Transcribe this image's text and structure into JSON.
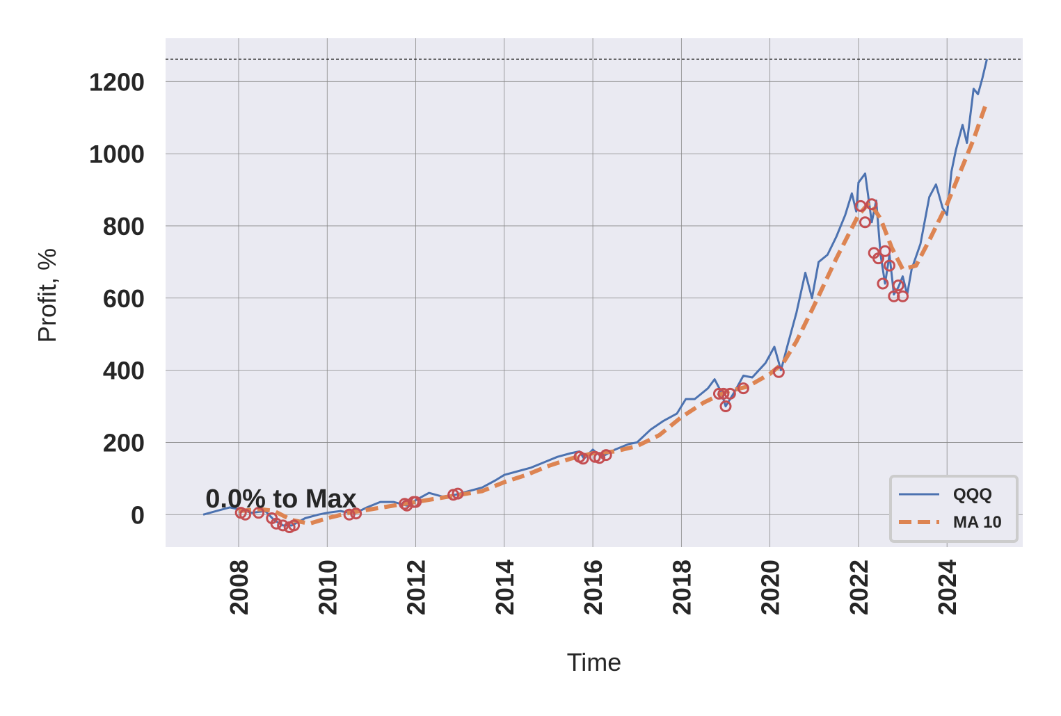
{
  "chart_data": {
    "type": "line",
    "title_x": "Time",
    "ylabel": "Profit, %",
    "annotation": {
      "text": "0.0% to Max",
      "x": 2007.25,
      "y": 20
    },
    "max_line": {
      "value": 1262,
      "color": "#000000"
    },
    "xlim": [
      2006.35,
      2025.71
    ],
    "ylim": [
      -90,
      1320
    ],
    "xticks": [
      2008,
      2010,
      2012,
      2014,
      2016,
      2018,
      2020,
      2022,
      2024
    ],
    "yticks": [
      0,
      200,
      400,
      600,
      800,
      1000,
      1200
    ],
    "grid": true,
    "legend": "lower right",
    "series": [
      {
        "name": "QQQ",
        "color": "#4c72b0",
        "style": "solid",
        "x": [
          2007.2,
          2007.5,
          2007.8,
          2008.0,
          2008.3,
          2008.6,
          2008.8,
          2009.0,
          2009.2,
          2009.5,
          2009.8,
          2010.0,
          2010.3,
          2010.6,
          2010.9,
          2011.2,
          2011.5,
          2011.8,
          2012.0,
          2012.3,
          2012.6,
          2012.9,
          2013.2,
          2013.5,
          2013.8,
          2014.0,
          2014.3,
          2014.6,
          2014.9,
          2015.2,
          2015.5,
          2015.7,
          2015.8,
          2016.0,
          2016.2,
          2016.5,
          2016.8,
          2017.0,
          2017.3,
          2017.6,
          2017.9,
          2018.1,
          2018.3,
          2018.6,
          2018.75,
          2018.9,
          2019.0,
          2019.2,
          2019.4,
          2019.6,
          2019.9,
          2020.1,
          2020.25,
          2020.4,
          2020.6,
          2020.8,
          2020.95,
          2021.1,
          2021.3,
          2021.5,
          2021.7,
          2021.85,
          2021.95,
          2022.0,
          2022.15,
          2022.3,
          2022.4,
          2022.5,
          2022.6,
          2022.7,
          2022.8,
          2022.9,
          2023.0,
          2023.1,
          2023.2,
          2023.4,
          2023.6,
          2023.75,
          2023.9,
          2024.0,
          2024.1,
          2024.2,
          2024.35,
          2024.45,
          2024.6,
          2024.7,
          2024.8,
          2024.9
        ],
        "values": [
          0,
          10,
          20,
          15,
          5,
          10,
          -15,
          -30,
          -30,
          -10,
          0,
          5,
          10,
          2,
          20,
          35,
          35,
          25,
          40,
          60,
          50,
          55,
          65,
          75,
          95,
          110,
          120,
          130,
          145,
          160,
          170,
          175,
          155,
          180,
          160,
          180,
          195,
          200,
          235,
          260,
          280,
          320,
          320,
          350,
          375,
          340,
          300,
          340,
          385,
          380,
          420,
          465,
          400,
          470,
          560,
          670,
          600,
          700,
          720,
          770,
          830,
          890,
          840,
          920,
          945,
          810,
          870,
          720,
          640,
          720,
          610,
          630,
          660,
          610,
          680,
          750,
          880,
          915,
          850,
          830,
          950,
          1010,
          1080,
          1030,
          1180,
          1165,
          1210,
          1262
        ]
      },
      {
        "name": "MA 10",
        "color": "#dd8452",
        "style": "dashed",
        "x": [
          2008.0,
          2008.5,
          2008.8,
          2009.2,
          2009.6,
          2010.0,
          2010.5,
          2011.0,
          2011.5,
          2012.0,
          2012.5,
          2013.0,
          2013.5,
          2014.0,
          2014.5,
          2015.0,
          2015.5,
          2016.0,
          2016.5,
          2017.0,
          2017.5,
          2018.0,
          2018.5,
          2019.0,
          2019.5,
          2020.0,
          2020.3,
          2020.6,
          2021.0,
          2021.5,
          2022.0,
          2022.25,
          2022.5,
          2022.75,
          2023.0,
          2023.3,
          2023.6,
          2024.0,
          2024.3,
          2024.6,
          2024.9
        ],
        "values": [
          10,
          15,
          10,
          -15,
          -25,
          -10,
          5,
          15,
          25,
          35,
          45,
          55,
          65,
          90,
          110,
          135,
          155,
          170,
          175,
          190,
          220,
          270,
          310,
          340,
          355,
          390,
          420,
          480,
          580,
          710,
          830,
          865,
          820,
          740,
          680,
          690,
          760,
          860,
          950,
          1040,
          1145
        ]
      }
    ],
    "drawdown_points": {
      "color": "#c44e52",
      "x": [
        2008.05,
        2008.15,
        2008.45,
        2008.75,
        2008.85,
        2009.0,
        2009.15,
        2009.25,
        2010.5,
        2010.65,
        2011.75,
        2011.8,
        2011.95,
        2012.0,
        2012.85,
        2012.95,
        2015.7,
        2015.78,
        2016.05,
        2016.15,
        2016.3,
        2018.85,
        2018.95,
        2019.0,
        2019.1,
        2019.4,
        2020.2,
        2022.05,
        2022.15,
        2022.3,
        2022.35,
        2022.45,
        2022.55,
        2022.6,
        2022.7,
        2022.8,
        2022.9,
        2023.0
      ],
      "values": [
        5,
        0,
        5,
        -10,
        -25,
        -30,
        -35,
        -30,
        0,
        3,
        30,
        25,
        35,
        35,
        55,
        58,
        160,
        155,
        160,
        157,
        165,
        335,
        335,
        300,
        335,
        350,
        395,
        855,
        810,
        860,
        725,
        710,
        640,
        730,
        690,
        605,
        635,
        605
      ]
    }
  }
}
